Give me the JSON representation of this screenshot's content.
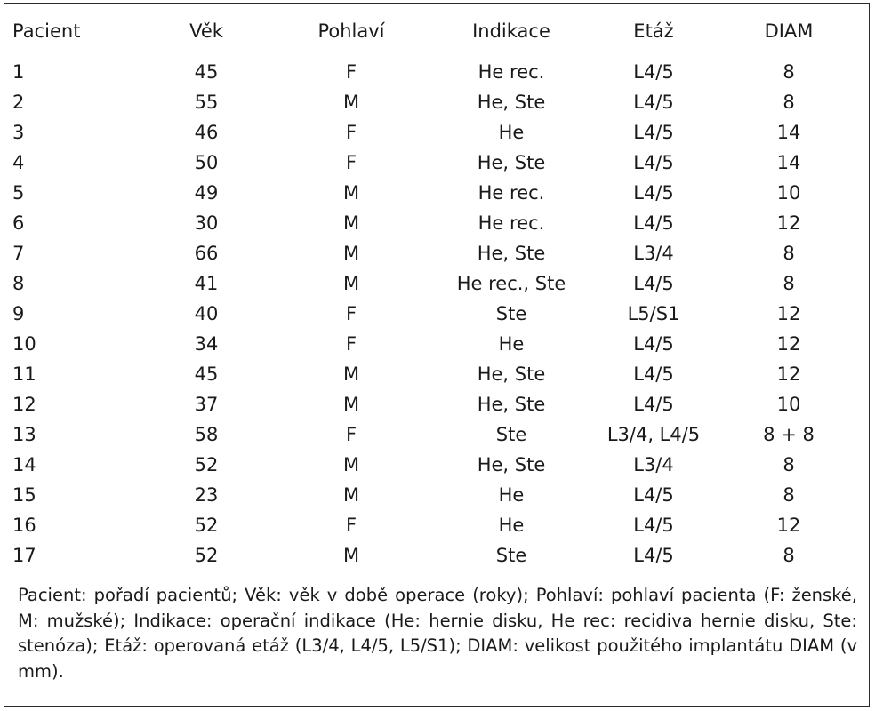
{
  "table": {
    "headers": [
      "Pacient",
      "Věk",
      "Pohlaví",
      "Indikace",
      "Etáž",
      "DIAM"
    ],
    "rows": [
      [
        "1",
        "45",
        "F",
        "He rec.",
        "L4/5",
        "8"
      ],
      [
        "2",
        "55",
        "M",
        "He, Ste",
        "L4/5",
        "8"
      ],
      [
        "3",
        "46",
        "F",
        "He",
        "L4/5",
        "14"
      ],
      [
        "4",
        "50",
        "F",
        "He, Ste",
        "L4/5",
        "14"
      ],
      [
        "5",
        "49",
        "M",
        "He rec.",
        "L4/5",
        "10"
      ],
      [
        "6",
        "30",
        "M",
        "He rec.",
        "L4/5",
        "12"
      ],
      [
        "7",
        "66",
        "M",
        "He, Ste",
        "L3/4",
        "8"
      ],
      [
        "8",
        "41",
        "M",
        "He rec., Ste",
        "L4/5",
        "8"
      ],
      [
        "9",
        "40",
        "F",
        "Ste",
        "L5/S1",
        "12"
      ],
      [
        "10",
        "34",
        "F",
        "He",
        "L4/5",
        "12"
      ],
      [
        "11",
        "45",
        "M",
        "He, Ste",
        "L4/5",
        "12"
      ],
      [
        "12",
        "37",
        "M",
        "He, Ste",
        "L4/5",
        "10"
      ],
      [
        "13",
        "58",
        "F",
        "Ste",
        "L3/4, L4/5",
        "8 + 8"
      ],
      [
        "14",
        "52",
        "M",
        "He, Ste",
        "L3/4",
        "8"
      ],
      [
        "15",
        "23",
        "M",
        "He",
        "L4/5",
        "8"
      ],
      [
        "16",
        "52",
        "F",
        "He",
        "L4/5",
        "12"
      ],
      [
        "17",
        "52",
        "M",
        "Ste",
        "L4/5",
        "8"
      ]
    ]
  },
  "footnote": "Pacient: pořadí pacientů; Věk: věk v době operace (roky); Pohlaví: pohlaví pacienta (F: ženské, M: mužské); Indikace: operační indikace (He: hernie disku, He rec: recidiva hernie disku, Ste: stenóza); Etáž: operovaná etáž (L3/4, L4/5, L5/S1); DIAM: velikost použitého implantátu DIAM (v mm)."
}
